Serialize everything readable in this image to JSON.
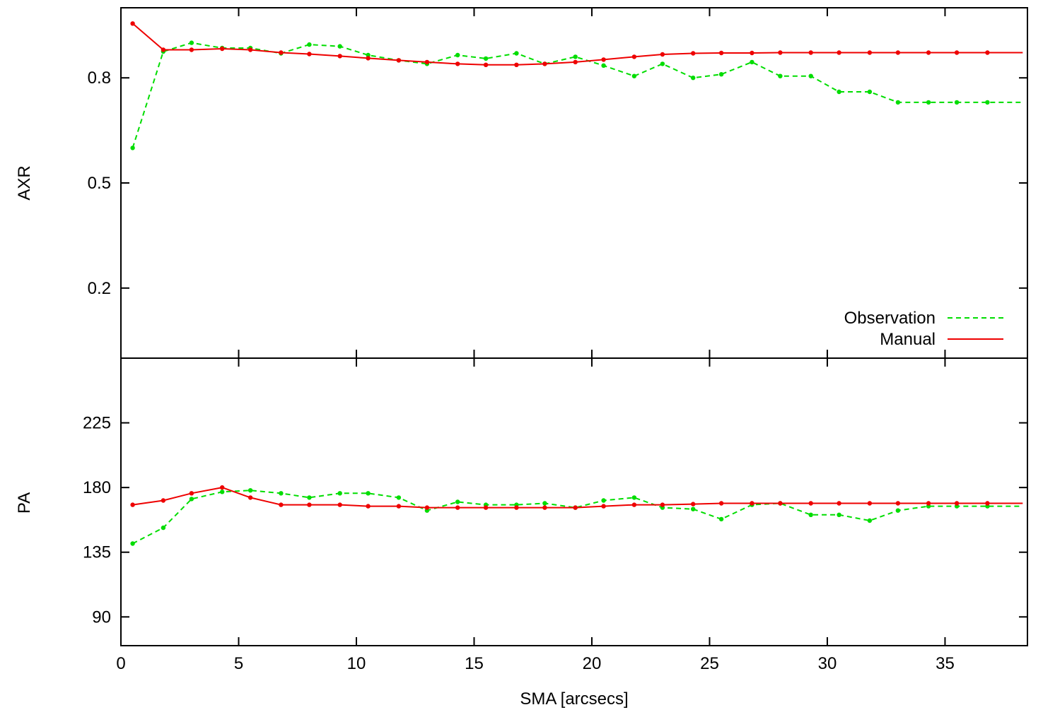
{
  "chart_data": [
    {
      "type": "line",
      "ylabel": "AXR",
      "xlim": [
        0,
        38.5
      ],
      "ylim": [
        0,
        1.0
      ],
      "yticks": [
        0.2,
        0.5,
        0.8
      ],
      "ytick_labels": [
        "0.2",
        "0.5",
        "0.8"
      ],
      "xticks": [
        0,
        5,
        10,
        15,
        20,
        25,
        30,
        35
      ],
      "legend": {
        "placement": "bottom-right"
      },
      "series": [
        {
          "name": "Observation",
          "color": "#00dd00",
          "style": "dashed",
          "x": [
            0.5,
            1.8,
            3.0,
            4.3,
            5.5,
            6.8,
            8.0,
            9.3,
            10.5,
            11.8,
            13.0,
            14.3,
            15.5,
            16.8,
            18.0,
            19.3,
            20.5,
            21.8,
            23.0,
            24.3,
            25.5,
            26.8,
            28.0,
            29.3,
            30.5,
            31.8,
            33.0,
            34.3,
            35.5,
            36.8,
            38.3
          ],
          "y": [
            0.6,
            0.875,
            0.9,
            0.885,
            0.885,
            0.87,
            0.895,
            0.89,
            0.865,
            0.85,
            0.84,
            0.865,
            0.855,
            0.87,
            0.84,
            0.86,
            0.835,
            0.805,
            0.84,
            0.8,
            0.81,
            0.845,
            0.805,
            0.805,
            0.76,
            0.76,
            0.73,
            0.73,
            0.73,
            0.73,
            0.73
          ]
        },
        {
          "name": "Manual",
          "color": "#ee0000",
          "style": "solid",
          "x": [
            0.5,
            1.8,
            3.0,
            4.3,
            5.5,
            6.8,
            8.0,
            9.3,
            10.5,
            11.8,
            13.0,
            14.3,
            15.5,
            16.8,
            18.0,
            19.3,
            20.5,
            21.8,
            23.0,
            24.3,
            25.5,
            26.8,
            28.0,
            29.3,
            30.5,
            31.8,
            33.0,
            34.3,
            35.5,
            36.8,
            38.3
          ],
          "y": [
            0.955,
            0.88,
            0.88,
            0.883,
            0.88,
            0.872,
            0.868,
            0.862,
            0.856,
            0.85,
            0.845,
            0.84,
            0.837,
            0.837,
            0.84,
            0.845,
            0.852,
            0.86,
            0.867,
            0.87,
            0.871,
            0.871,
            0.872,
            0.872,
            0.872,
            0.872,
            0.872,
            0.872,
            0.872,
            0.872,
            0.872
          ]
        }
      ]
    },
    {
      "type": "line",
      "ylabel": "PA",
      "xlabel": "SMA [arcsecs]",
      "xlim": [
        0,
        38.5
      ],
      "ylim": [
        70,
        270
      ],
      "yticks": [
        90,
        135,
        180,
        225
      ],
      "ytick_labels": [
        "90",
        "135",
        "180",
        "225"
      ],
      "xticks": [
        0,
        5,
        10,
        15,
        20,
        25,
        30,
        35
      ],
      "xtick_labels": [
        "0",
        "5",
        "10",
        "15",
        "20",
        "25",
        "30",
        "35"
      ],
      "series": [
        {
          "name": "Observation",
          "color": "#00dd00",
          "style": "dashed",
          "x": [
            0.5,
            1.8,
            3.0,
            4.3,
            5.5,
            6.8,
            8.0,
            9.3,
            10.5,
            11.8,
            13.0,
            14.3,
            15.5,
            16.8,
            18.0,
            19.3,
            20.5,
            21.8,
            23.0,
            24.3,
            25.5,
            26.8,
            28.0,
            29.3,
            30.5,
            31.8,
            33.0,
            34.3,
            35.5,
            36.8,
            38.3
          ],
          "y": [
            141,
            152,
            172,
            177,
            178,
            176,
            173,
            176,
            176,
            173,
            164,
            170,
            168,
            168,
            169,
            166,
            171,
            173,
            166,
            165,
            158,
            168,
            169,
            161,
            161,
            157,
            164,
            167,
            167,
            167,
            167
          ]
        },
        {
          "name": "Manual",
          "color": "#ee0000",
          "style": "solid",
          "x": [
            0.5,
            1.8,
            3.0,
            4.3,
            5.5,
            6.8,
            8.0,
            9.3,
            10.5,
            11.8,
            13.0,
            14.3,
            15.5,
            16.8,
            18.0,
            19.3,
            20.5,
            21.8,
            23.0,
            24.3,
            25.5,
            26.8,
            28.0,
            29.3,
            30.5,
            31.8,
            33.0,
            34.3,
            35.5,
            36.8,
            38.3
          ],
          "y": [
            168,
            171,
            176,
            180,
            173,
            168,
            168,
            168,
            167,
            167,
            166,
            166,
            166,
            166,
            166,
            166,
            167,
            168,
            168,
            168.5,
            169,
            169,
            169,
            169,
            169,
            169,
            169,
            169,
            169,
            169,
            169
          ]
        }
      ]
    }
  ]
}
